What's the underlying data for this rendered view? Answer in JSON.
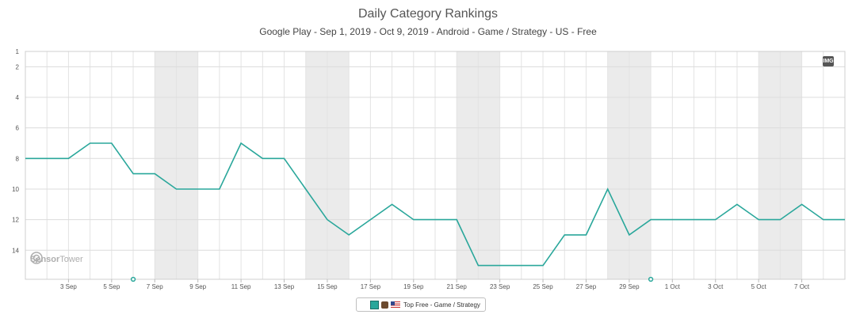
{
  "header": {
    "title": "Daily Category Rankings",
    "subtitle": "Google Play - Sep 1, 2019 - Oct 9, 2019 - Android - Game / Strategy - US - Free"
  },
  "chart_data": {
    "type": "line",
    "title": "Daily Category Rankings",
    "subtitle": "Google Play - Sep 1, 2019 - Oct 9, 2019 - Android - Game / Strategy - US - Free",
    "x": [
      "2019-09-01",
      "2019-09-02",
      "2019-09-03",
      "2019-09-04",
      "2019-09-05",
      "2019-09-06",
      "2019-09-07",
      "2019-09-08",
      "2019-09-09",
      "2019-09-10",
      "2019-09-11",
      "2019-09-12",
      "2019-09-13",
      "2019-09-14",
      "2019-09-15",
      "2019-09-16",
      "2019-09-17",
      "2019-09-18",
      "2019-09-19",
      "2019-09-20",
      "2019-09-21",
      "2019-09-22",
      "2019-09-23",
      "2019-09-24",
      "2019-09-25",
      "2019-09-26",
      "2019-09-27",
      "2019-09-28",
      "2019-09-29",
      "2019-09-30",
      "2019-10-01",
      "2019-10-02",
      "2019-10-03",
      "2019-10-04",
      "2019-10-05",
      "2019-10-06",
      "2019-10-07",
      "2019-10-08",
      "2019-10-09"
    ],
    "x_tick_labels": [
      "3 Sep",
      "5 Sep",
      "7 Sep",
      "9 Sep",
      "11 Sep",
      "13 Sep",
      "15 Sep",
      "17 Sep",
      "19 Sep",
      "21 Sep",
      "23 Sep",
      "25 Sep",
      "27 Sep",
      "29 Sep",
      "1 Oct",
      "3 Oct",
      "5 Oct",
      "7 Oct"
    ],
    "x_tick_dates": [
      "2019-09-03",
      "2019-09-05",
      "2019-09-07",
      "2019-09-09",
      "2019-09-11",
      "2019-09-13",
      "2019-09-15",
      "2019-09-17",
      "2019-09-19",
      "2019-09-21",
      "2019-09-23",
      "2019-09-25",
      "2019-09-27",
      "2019-09-29",
      "2019-10-01",
      "2019-10-03",
      "2019-10-05",
      "2019-10-07"
    ],
    "y_tick_labels": [
      "1",
      "2",
      "4",
      "6",
      "8",
      "10",
      "12",
      "14"
    ],
    "y_ticks": [
      1,
      2,
      4,
      6,
      8,
      10,
      12,
      14
    ],
    "ylim": [
      1,
      15.9
    ],
    "y_reversed": true,
    "series": [
      {
        "name": "Top Free - Game / Strategy",
        "color": "#2aa79b",
        "values": [
          8,
          8,
          8,
          7,
          7,
          9,
          9,
          10,
          10,
          10,
          7,
          8,
          8,
          10,
          12,
          13,
          12,
          11,
          12,
          12,
          12,
          15,
          15,
          15,
          15,
          13,
          13,
          10,
          13,
          12,
          12,
          12,
          12,
          11,
          12,
          12,
          11,
          12,
          12
        ]
      }
    ],
    "weekend_shading": [
      [
        "2019-09-07",
        "2019-09-08"
      ],
      [
        "2019-09-14",
        "2019-09-15"
      ],
      [
        "2019-09-21",
        "2019-09-22"
      ],
      [
        "2019-09-28",
        "2019-09-29"
      ],
      [
        "2019-10-05",
        "2019-10-06"
      ]
    ],
    "event_markers": [
      "2019-09-06",
      "2019-09-30"
    ],
    "grid": true,
    "legend_position": "bottom-center"
  },
  "legend": {
    "label": "Top Free - Game / Strategy",
    "icons": [
      "square-swatch-icon",
      "app-icon",
      "us-flag-icon"
    ]
  },
  "badge": {
    "label": "IMG"
  },
  "watermark": {
    "brand_a": "Sensor",
    "brand_b": "Tower",
    "icon": "sensortower-logo-icon"
  }
}
